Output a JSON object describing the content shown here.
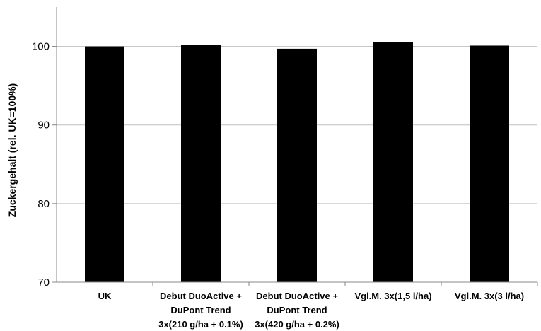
{
  "chart_data": {
    "type": "bar",
    "title": "",
    "xlabel": "",
    "ylabel": "Zuckergehalt (rel. UK=100%)",
    "ylim": [
      70,
      105
    ],
    "yticks": [
      70,
      80,
      90,
      100
    ],
    "grid": true,
    "legend": "none",
    "bar_color": "#000000",
    "grid_color": "#c0c0c0",
    "categories": [
      [
        "UK"
      ],
      [
        "Debut DuoActive +",
        "DuPont Trend",
        "3x(210 g/ha + 0.1%)"
      ],
      [
        "Debut DuoActive +",
        "DuPont Trend",
        "3x(420 g/ha + 0.2%)"
      ],
      [
        "Vgl.M. 3x(1,5 l/ha)"
      ],
      [
        "Vgl.M. 3x(3 l/ha)"
      ]
    ],
    "values": [
      100.0,
      100.2,
      99.7,
      100.5,
      100.1
    ]
  }
}
